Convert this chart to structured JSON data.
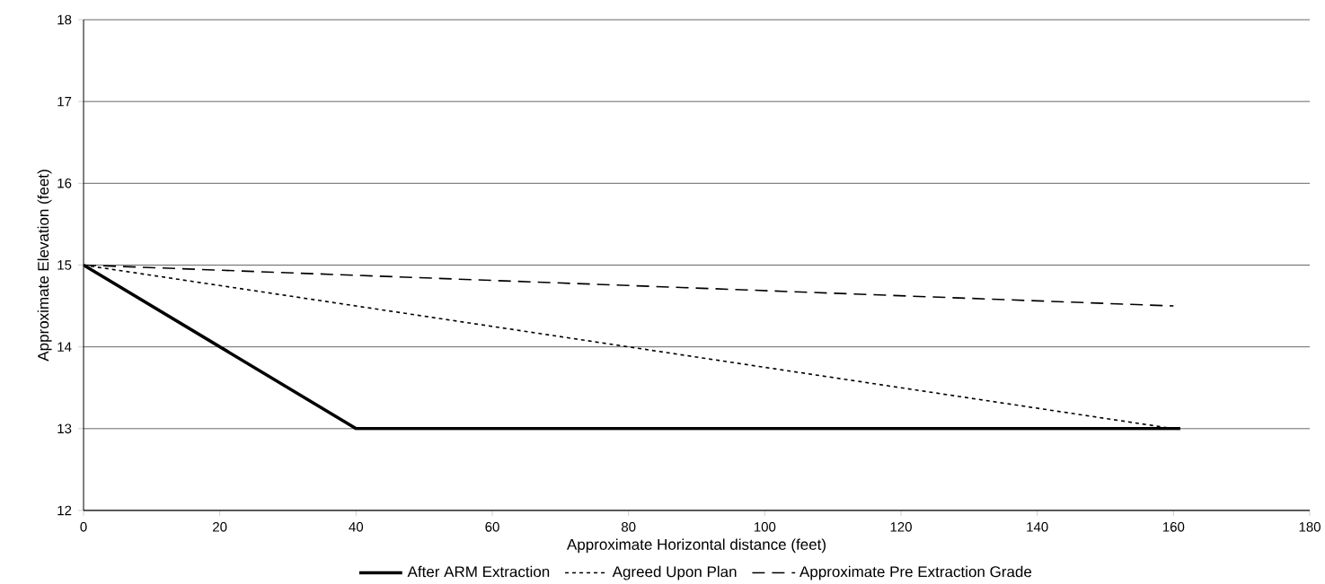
{
  "chart_data": {
    "type": "line",
    "xlabel": "Approximate Horizontal distance (feet)",
    "ylabel": "Approximate Elevation (feet)",
    "xlim": [
      0,
      180
    ],
    "xticks": [
      0,
      20,
      40,
      60,
      80,
      100,
      120,
      140,
      160,
      180
    ],
    "ylim": [
      12,
      18
    ],
    "yticks": [
      12,
      13,
      14,
      15,
      16,
      17,
      18
    ],
    "grid": "y",
    "legend": "bottom",
    "marker": "none",
    "series": [
      {
        "name": "After ARM Extraction",
        "color": "#000000",
        "line_style": "solid",
        "x": [
          0,
          40,
          161
        ],
        "values": [
          15,
          13,
          13
        ]
      },
      {
        "name": "Agreed Upon Plan",
        "color": "#000000",
        "line_style": "dotted",
        "x": [
          0,
          160
        ],
        "values": [
          15,
          13
        ]
      },
      {
        "name": "Approximate Pre Extraction Grade",
        "color": "#000000",
        "line_style": "dashed",
        "x": [
          0,
          160
        ],
        "values": [
          15,
          14.5
        ]
      }
    ]
  }
}
